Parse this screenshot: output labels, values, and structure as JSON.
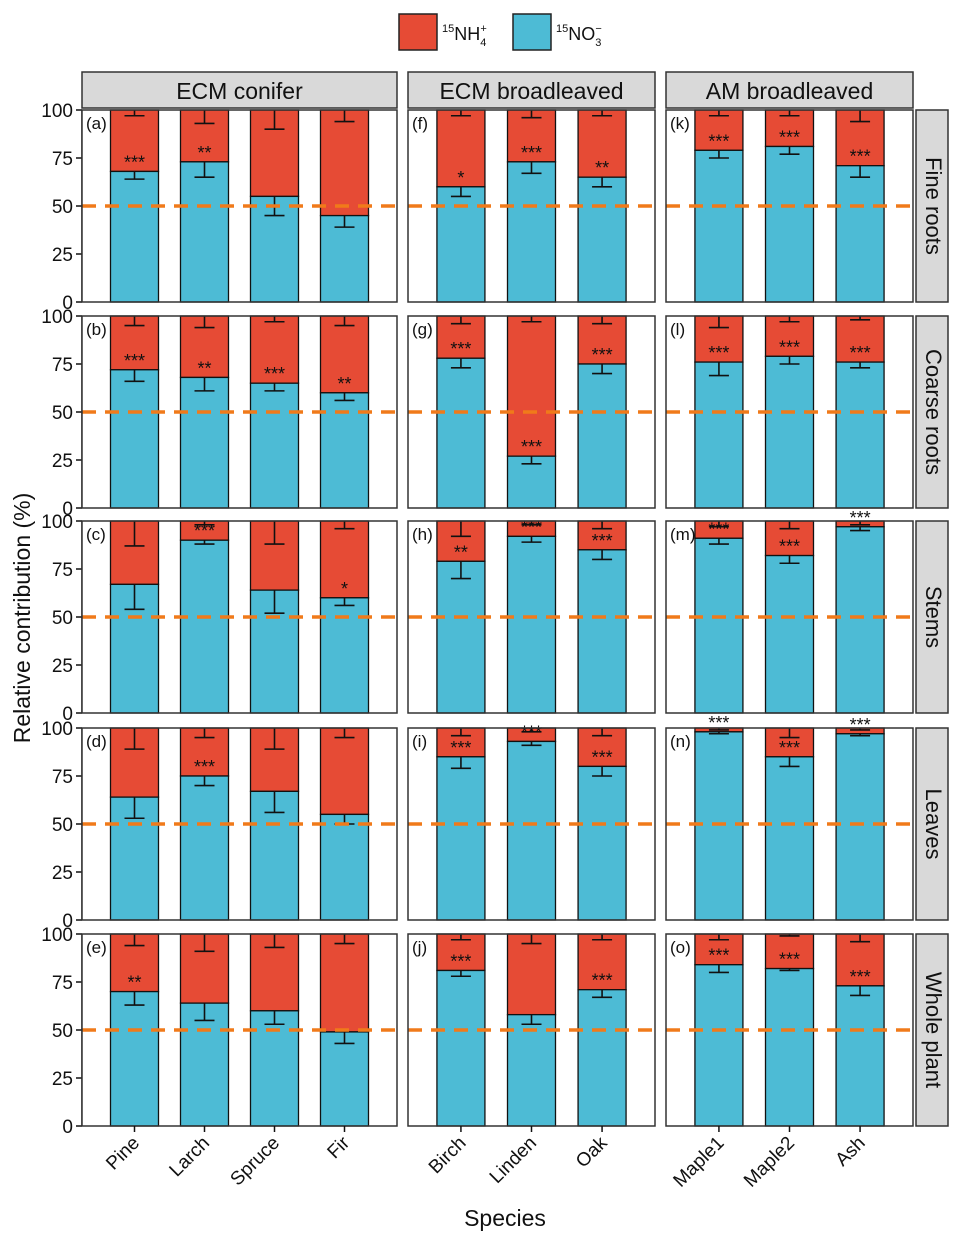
{
  "chart_data": {
    "type": "bar",
    "stacked": true,
    "ylabel": "Relative contribution (%)",
    "xlabel": "Species",
    "ylim": [
      0,
      100
    ],
    "yticks": [
      "0",
      "25",
      "50",
      "75",
      "100"
    ],
    "reference_line": 50,
    "legend": {
      "position": "top-center",
      "items": [
        {
          "base": "15",
          "main": "NH",
          "sub": "4",
          "sup": "+",
          "color": "#e64b35"
        },
        {
          "base": "15",
          "main": "NO",
          "sub": "3",
          "sup": "−",
          "color": "#4dbbd5"
        }
      ]
    },
    "colors": {
      "nh4": "#e64b35",
      "no3": "#4dbbd5",
      "reference": "#f07a1a",
      "strip": "#d9d9d9"
    },
    "groups": [
      {
        "name": "ECM conifer",
        "categories": [
          "Pine",
          "Larch",
          "Spruce",
          "Fir"
        ]
      },
      {
        "name": "ECM broadleaved",
        "categories": [
          "Birch",
          "Linden",
          "Oak"
        ]
      },
      {
        "name": "AM broadleaved",
        "categories": [
          "Maple1",
          "Maple2",
          "Ash"
        ]
      }
    ],
    "rows": [
      "Fine roots",
      "Coarse roots",
      "Stems",
      "Leaves",
      "Whole plant"
    ],
    "panels": [
      {
        "label": "(a)",
        "row": 0,
        "group": 0,
        "no3": [
          68,
          73,
          55,
          45
        ],
        "err": [
          4,
          8,
          10,
          6
        ],
        "nh4_err": [
          3,
          7,
          10,
          6
        ],
        "sig": [
          "***",
          "**",
          "",
          ""
        ]
      },
      {
        "label": "(f)",
        "row": 0,
        "group": 1,
        "no3": [
          60,
          73,
          65
        ],
        "err": [
          5,
          6,
          5
        ],
        "nh4_err": [
          3,
          4,
          3
        ],
        "sig": [
          "*",
          "***",
          "**"
        ]
      },
      {
        "label": "(k)",
        "row": 0,
        "group": 2,
        "no3": [
          79,
          81,
          71
        ],
        "err": [
          4,
          4,
          6
        ],
        "nh4_err": [
          3,
          3,
          6
        ],
        "sig": [
          "***",
          "***",
          "***"
        ]
      },
      {
        "label": "(b)",
        "row": 1,
        "group": 0,
        "no3": [
          72,
          68,
          65,
          60
        ],
        "err": [
          6,
          7,
          4,
          4
        ],
        "nh4_err": [
          5,
          6,
          3,
          5
        ],
        "sig": [
          "***",
          "**",
          "***",
          "**"
        ]
      },
      {
        "label": "(g)",
        "row": 1,
        "group": 1,
        "no3": [
          78,
          27,
          75
        ],
        "err": [
          5,
          4,
          5
        ],
        "nh4_err": [
          4,
          3,
          4
        ],
        "sig": [
          "***",
          "***",
          "***"
        ]
      },
      {
        "label": "(l)",
        "row": 1,
        "group": 2,
        "no3": [
          76,
          79,
          76
        ],
        "err": [
          7,
          4,
          3
        ],
        "nh4_err": [
          6,
          3,
          2
        ],
        "sig": [
          "***",
          "***",
          "***"
        ]
      },
      {
        "label": "(c)",
        "row": 2,
        "group": 0,
        "no3": [
          67,
          90,
          64,
          60
        ],
        "err": [
          13,
          2,
          12,
          4
        ],
        "nh4_err": [
          13,
          2,
          12,
          4
        ],
        "sig": [
          "",
          "***",
          "",
          "*"
        ]
      },
      {
        "label": "(h)",
        "row": 2,
        "group": 1,
        "no3": [
          79,
          92,
          85
        ],
        "err": [
          9,
          3,
          5
        ],
        "nh4_err": [
          8,
          2,
          4
        ],
        "sig": [
          "**",
          "***",
          "***"
        ]
      },
      {
        "label": "(m)",
        "row": 2,
        "group": 2,
        "no3": [
          91,
          82,
          97
        ],
        "err": [
          3,
          4,
          2
        ],
        "nh4_err": [
          3,
          4,
          2
        ],
        "sig": [
          "***",
          "***",
          "***"
        ]
      },
      {
        "label": "(d)",
        "row": 3,
        "group": 0,
        "no3": [
          64,
          75,
          67,
          55
        ],
        "err": [
          11,
          5,
          11,
          5
        ],
        "nh4_err": [
          11,
          5,
          11,
          5
        ],
        "sig": [
          "",
          "***",
          "",
          ""
        ]
      },
      {
        "label": "(i)",
        "row": 3,
        "group": 1,
        "no3": [
          85,
          93,
          80
        ],
        "err": [
          6,
          2,
          5
        ],
        "nh4_err": [
          4,
          2,
          4
        ],
        "sig": [
          "***",
          "***",
          "***"
        ]
      },
      {
        "label": "(n)",
        "row": 3,
        "group": 2,
        "no3": [
          98,
          85,
          97
        ],
        "err": [
          1,
          5,
          1
        ],
        "nh4_err": [
          1,
          5,
          1
        ],
        "sig": [
          "***",
          "***",
          "***"
        ]
      },
      {
        "label": "(e)",
        "row": 4,
        "group": 0,
        "no3": [
          70,
          64,
          60,
          49
        ],
        "err": [
          7,
          9,
          7,
          6
        ],
        "nh4_err": [
          6,
          9,
          7,
          5
        ],
        "sig": [
          "**",
          "",
          "",
          ""
        ]
      },
      {
        "label": "(j)",
        "row": 4,
        "group": 1,
        "no3": [
          81,
          58,
          71
        ],
        "err": [
          3,
          5,
          4
        ],
        "nh4_err": [
          3,
          5,
          3
        ],
        "sig": [
          "***",
          "",
          "***"
        ]
      },
      {
        "label": "(o)",
        "row": 4,
        "group": 2,
        "no3": [
          84,
          82,
          73
        ],
        "err": [
          4,
          1,
          5
        ],
        "nh4_err": [
          3,
          1,
          4
        ],
        "sig": [
          "***",
          "***",
          "***"
        ]
      }
    ]
  }
}
